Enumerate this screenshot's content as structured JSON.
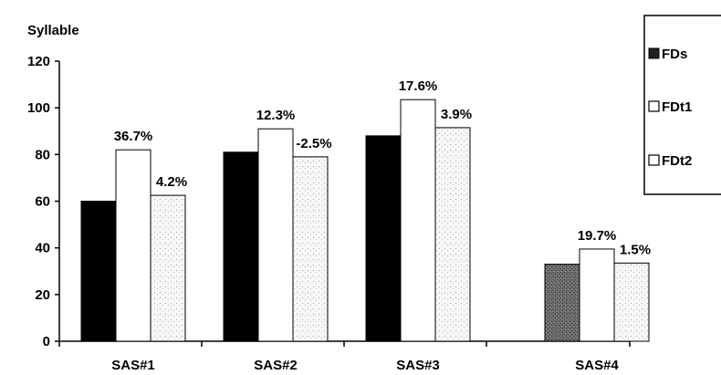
{
  "chart_data": {
    "type": "bar",
    "ylabel": "Syllable",
    "xlabel": "",
    "ylim": [
      0,
      120
    ],
    "yticks": [
      0,
      20,
      40,
      60,
      80,
      100,
      120
    ],
    "categories": [
      "SAS#1",
      "SAS#2",
      "SAS#3",
      "SAS#4"
    ],
    "series": [
      {
        "name": "FDs",
        "values": [
          60,
          81,
          88,
          33
        ],
        "data_labels": [
          "",
          "",
          "",
          ""
        ]
      },
      {
        "name": "FDt1",
        "values": [
          82,
          91,
          103.5,
          39.5
        ],
        "data_labels": [
          "36.7%",
          "12.3%",
          "17.6%",
          "19.7%"
        ]
      },
      {
        "name": "FDt2",
        "values": [
          62.5,
          79,
          91.5,
          33.5
        ],
        "data_labels": [
          "4.2%",
          "-2.5%",
          "3.9%",
          "1.5%"
        ]
      }
    ],
    "legend_position": "right",
    "grid": false,
    "colors": {
      "FDs": "#000000",
      "FDs_sas4": "#6e6e6e",
      "FDt1": "#ffffff",
      "FDt2": "#f7f7f7"
    }
  }
}
